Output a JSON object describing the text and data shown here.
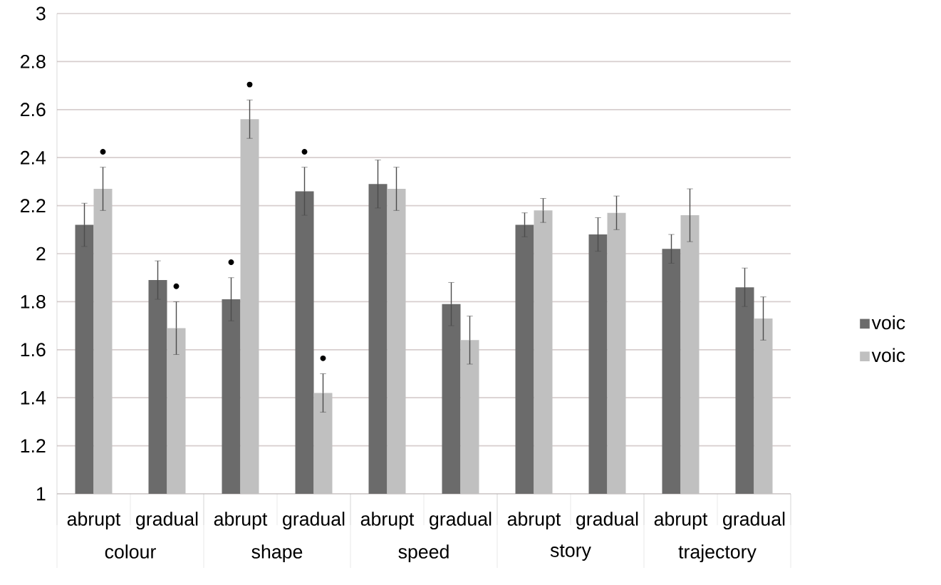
{
  "chart_data": {
    "type": "bar",
    "categories": [
      "abrupt",
      "gradual",
      "abrupt",
      "gradual",
      "abrupt",
      "gradual",
      "abrupt",
      "gradual",
      "abrupt",
      "gradual"
    ],
    "annotations": [
      "colour",
      "shape",
      "speed",
      "story",
      "trajectory"
    ],
    "series": [
      {
        "name": "voic",
        "color": "#6b6b6b",
        "values": [
          2.12,
          1.89,
          1.81,
          2.26,
          2.29,
          1.79,
          2.12,
          2.08,
          2.02,
          1.86
        ],
        "errors": [
          0.09,
          0.08,
          0.09,
          0.1,
          0.1,
          0.09,
          0.05,
          0.07,
          0.06,
          0.08
        ],
        "value_labels": [
          null,
          null,
          "•",
          "•",
          null,
          null,
          null,
          null,
          null,
          null
        ]
      },
      {
        "name": "voic",
        "color": "#c0c0c0",
        "values": [
          2.27,
          1.69,
          2.56,
          1.42,
          2.27,
          1.64,
          2.18,
          2.17,
          2.16,
          1.73
        ],
        "errors": [
          0.09,
          0.11,
          0.08,
          0.08,
          0.09,
          0.1,
          0.05,
          0.07,
          0.11,
          0.09
        ],
        "value_labels": [
          "•",
          "•",
          "•",
          "•",
          null,
          null,
          null,
          null,
          null,
          null
        ]
      }
    ],
    "ylim": [
      1,
      3
    ],
    "yticks": [
      1,
      1.2,
      1.4,
      1.6,
      1.8,
      2,
      2.2,
      2.4,
      2.6,
      2.8,
      3
    ],
    "grid": "y",
    "legend": "right"
  }
}
